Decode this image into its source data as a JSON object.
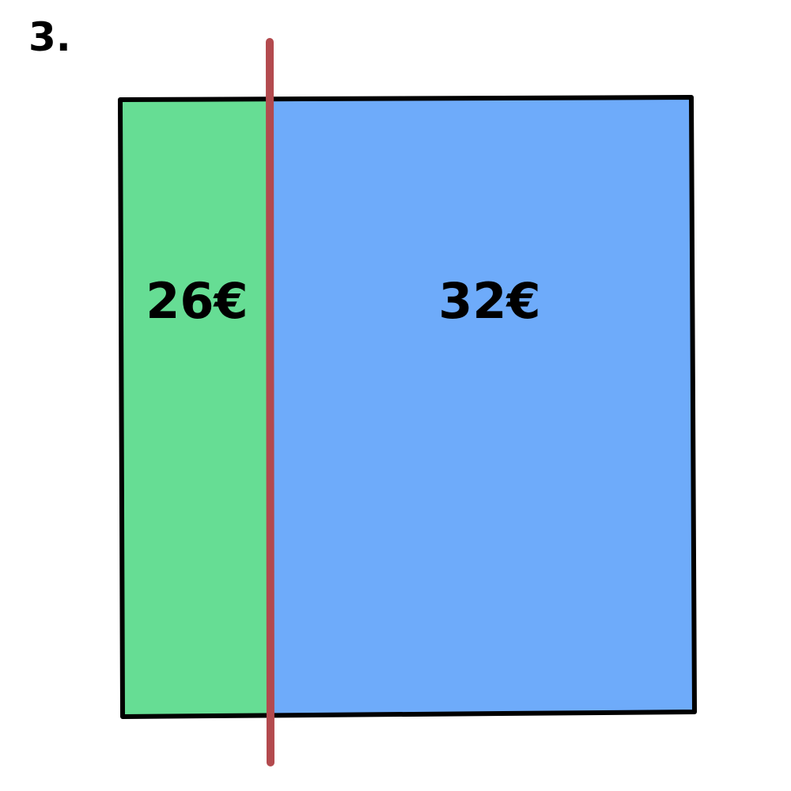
{
  "problem_number": "3.",
  "regions": [
    {
      "label": "26€",
      "color": "#66dd94"
    },
    {
      "label": "32€",
      "color": "#6eabfa"
    }
  ],
  "colors": {
    "outline": "#000000",
    "divider": "#b34a4e"
  }
}
